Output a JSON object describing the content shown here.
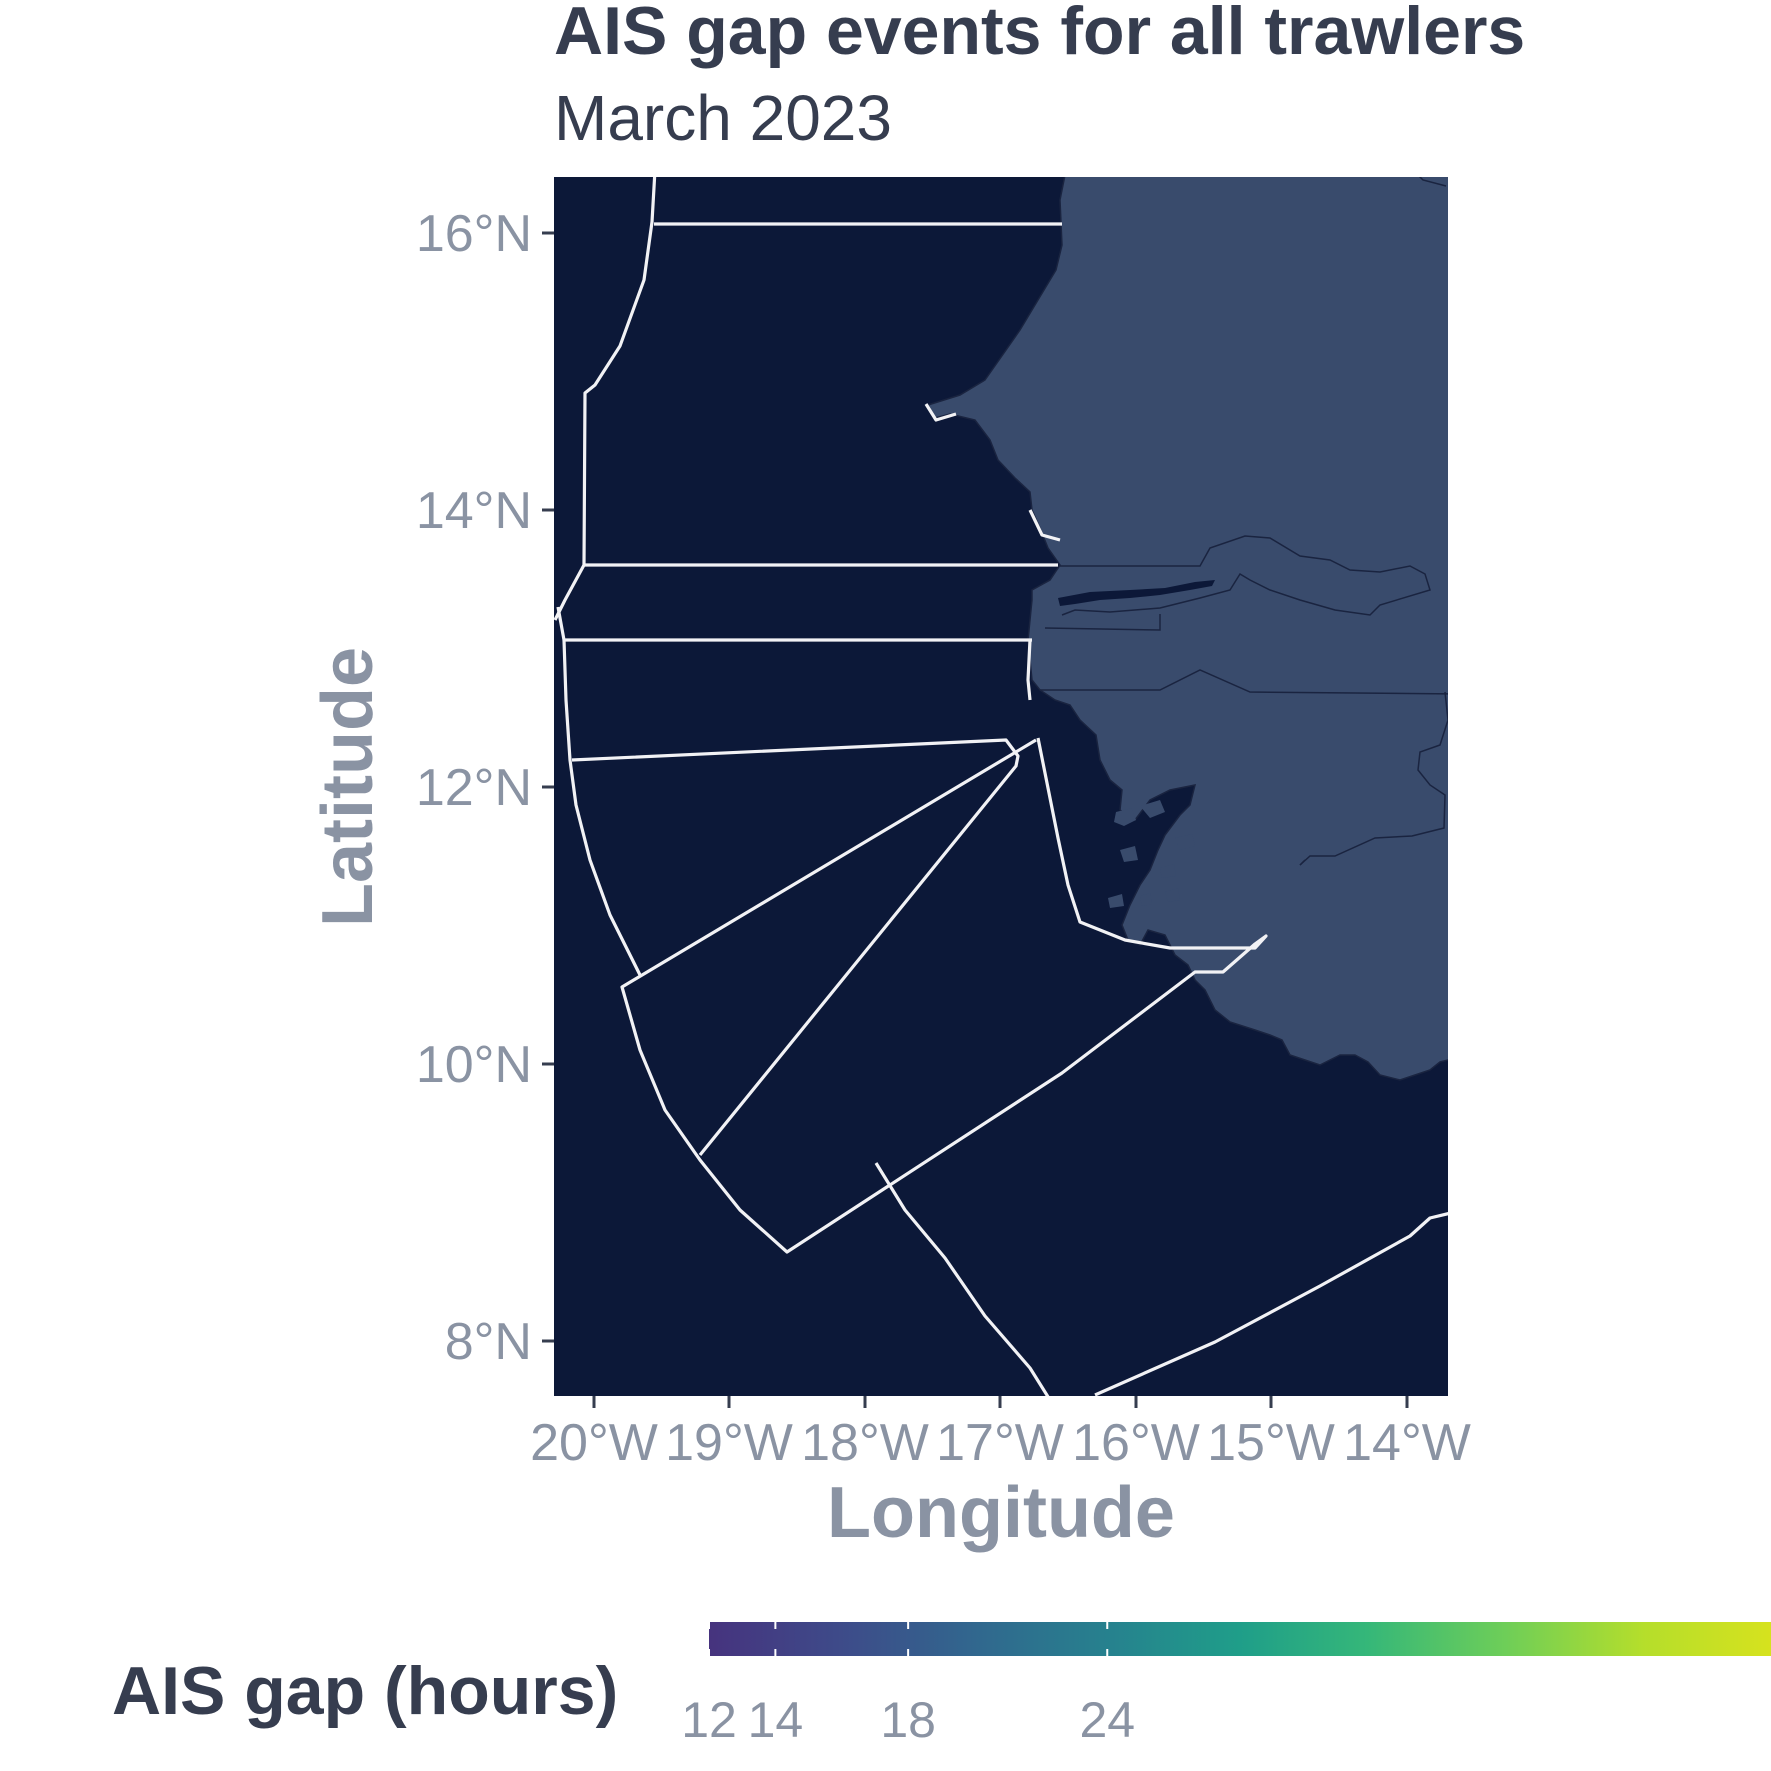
{
  "map": {
    "title": "AIS gap events for all trawlers",
    "subtitle": "March 2023",
    "x_axis_title": "Longitude",
    "y_axis_title": "Latitude",
    "x_ticks": [
      "20°W",
      "19°W",
      "18°W",
      "17°W",
      "16°W",
      "15°W",
      "14°W"
    ],
    "y_ticks": [
      "16°N",
      "14°N",
      "12°N",
      "10°N",
      "8°N"
    ],
    "extent": {
      "lon": [
        -20.3,
        -13.7
      ],
      "lat": [
        7.6,
        16.4
      ]
    },
    "colors": {
      "ocean": "#0c1838",
      "land": "#394b6c",
      "eez_boundary": "#f2f2f5"
    }
  },
  "legend": {
    "title": "AIS gap (hours)",
    "ticks": [
      "12",
      "14",
      "18",
      "24"
    ],
    "tick_values": [
      12,
      14,
      18,
      24
    ],
    "range": [
      12,
      44
    ],
    "palette": "viridis"
  }
}
